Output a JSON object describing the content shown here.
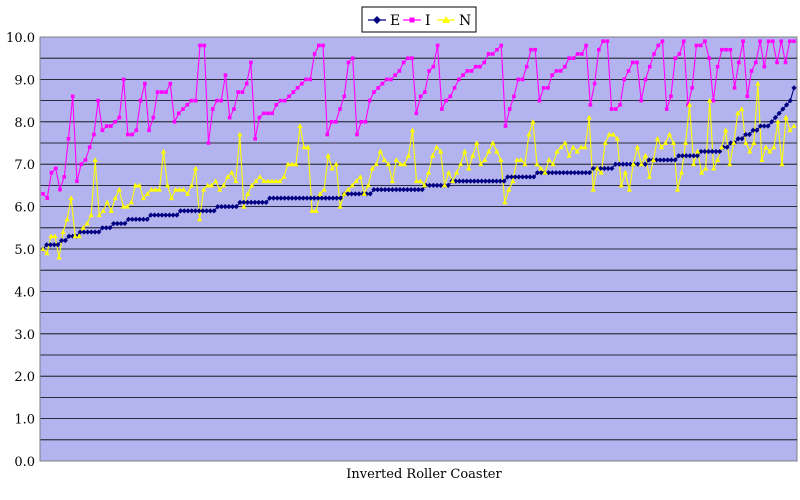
{
  "chart_data": {
    "type": "line",
    "title": "",
    "xlabel": "Inverted Roller Coaster",
    "ylabel": "",
    "ylim": [
      0,
      10
    ],
    "yticks": [
      "0.0",
      "1.0",
      "2.0",
      "3.0",
      "4.0",
      "5.0",
      "6.0",
      "7.0",
      "8.0",
      "9.0",
      "10.0"
    ],
    "grid": true,
    "legend_position": "top-center",
    "plot_background": "#b3b3f0",
    "series": [
      {
        "name": "E",
        "color": "#000080",
        "marker": "diamond",
        "values": [
          5.0,
          5.1,
          5.1,
          5.1,
          5.1,
          5.2,
          5.2,
          5.3,
          5.3,
          5.3,
          5.4,
          5.4,
          5.4,
          5.4,
          5.4,
          5.4,
          5.5,
          5.5,
          5.5,
          5.6,
          5.6,
          5.6,
          5.6,
          5.7,
          5.7,
          5.7,
          5.7,
          5.7,
          5.7,
          5.8,
          5.8,
          5.8,
          5.8,
          5.8,
          5.8,
          5.8,
          5.8,
          5.9,
          5.9,
          5.9,
          5.9,
          5.9,
          5.9,
          5.9,
          5.9,
          5.9,
          5.9,
          6.0,
          6.0,
          6.0,
          6.0,
          6.0,
          6.0,
          6.1,
          6.1,
          6.1,
          6.1,
          6.1,
          6.1,
          6.1,
          6.1,
          6.2,
          6.2,
          6.2,
          6.2,
          6.2,
          6.2,
          6.2,
          6.2,
          6.2,
          6.2,
          6.2,
          6.2,
          6.2,
          6.2,
          6.2,
          6.2,
          6.2,
          6.2,
          6.2,
          6.2,
          6.3,
          6.3,
          6.3,
          6.3,
          6.3,
          6.3,
          6.3,
          6.3,
          6.4,
          6.4,
          6.4,
          6.4,
          6.4,
          6.4,
          6.4,
          6.4,
          6.4,
          6.4,
          6.4,
          6.4,
          6.4,
          6.4,
          6.5,
          6.5,
          6.5,
          6.5,
          6.5,
          6.5,
          6.5,
          6.6,
          6.6,
          6.6,
          6.6,
          6.6,
          6.6,
          6.6,
          6.6,
          6.6,
          6.6,
          6.6,
          6.6,
          6.6,
          6.6,
          6.6,
          6.7,
          6.7,
          6.7,
          6.7,
          6.7,
          6.7,
          6.7,
          6.7,
          6.8,
          6.8,
          6.8,
          6.8,
          6.8,
          6.8,
          6.8,
          6.8,
          6.8,
          6.8,
          6.8,
          6.8,
          6.8,
          6.8,
          6.8,
          6.9,
          6.9,
          6.9,
          6.9,
          6.9,
          6.9,
          7.0,
          7.0,
          7.0,
          7.0,
          7.0,
          7.0,
          7.0,
          7.0,
          7.0,
          7.1,
          7.1,
          7.1,
          7.1,
          7.1,
          7.1,
          7.1,
          7.1,
          7.2,
          7.2,
          7.2,
          7.2,
          7.2,
          7.2,
          7.3,
          7.3,
          7.3,
          7.3,
          7.3,
          7.3,
          7.4,
          7.4,
          7.5,
          7.5,
          7.6,
          7.6,
          7.7,
          7.7,
          7.8,
          7.8,
          7.9,
          7.9,
          7.9,
          8.0,
          8.1,
          8.2,
          8.3,
          8.4,
          8.5,
          8.8
        ]
      },
      {
        "name": "I",
        "color": "#ff00ff",
        "marker": "square",
        "values": [
          6.3,
          6.2,
          6.8,
          6.9,
          6.4,
          6.7,
          7.6,
          8.6,
          6.6,
          7.0,
          7.1,
          7.4,
          7.7,
          8.5,
          7.8,
          7.9,
          7.9,
          8.0,
          8.1,
          9.0,
          7.7,
          7.7,
          7.8,
          8.5,
          8.9,
          7.8,
          8.1,
          8.7,
          8.7,
          8.7,
          8.9,
          8.0,
          8.2,
          8.3,
          8.4,
          8.5,
          8.5,
          9.8,
          9.8,
          7.5,
          8.3,
          8.5,
          8.5,
          9.1,
          8.1,
          8.3,
          8.7,
          8.7,
          8.9,
          9.4,
          7.6,
          8.1,
          8.2,
          8.2,
          8.2,
          8.4,
          8.5,
          8.5,
          8.6,
          8.7,
          8.8,
          8.9,
          9.0,
          9.0,
          9.6,
          9.8,
          9.8,
          7.7,
          8.0,
          8.0,
          8.3,
          8.6,
          9.4,
          9.5,
          7.7,
          8.0,
          8.0,
          8.5,
          8.7,
          8.8,
          8.9,
          9.0,
          9.0,
          9.1,
          9.2,
          9.4,
          9.5,
          9.5,
          8.2,
          8.6,
          8.7,
          9.2,
          9.3,
          9.8,
          8.3,
          8.5,
          8.6,
          8.8,
          9.0,
          9.1,
          9.2,
          9.2,
          9.3,
          9.3,
          9.4,
          9.6,
          9.6,
          9.7,
          9.8,
          7.9,
          8.3,
          8.6,
          9.0,
          9.0,
          9.3,
          9.7,
          9.7,
          8.5,
          8.8,
          8.8,
          9.1,
          9.2,
          9.2,
          9.3,
          9.5,
          9.5,
          9.6,
          9.6,
          9.8,
          8.4,
          8.9,
          9.7,
          9.9,
          9.9,
          8.3,
          8.3,
          8.4,
          9.0,
          9.2,
          9.4,
          9.4,
          8.5,
          9.0,
          9.3,
          9.6,
          9.8,
          9.9,
          8.3,
          8.6,
          9.5,
          9.6,
          9.9,
          8.4,
          8.8,
          9.8,
          9.8,
          9.9,
          9.5,
          8.5,
          9.3,
          9.7,
          9.7,
          9.7,
          8.8,
          9.4,
          9.9,
          8.6,
          9.2,
          9.4,
          9.9,
          9.3,
          9.9,
          9.9,
          9.4,
          9.9,
          9.4,
          9.9,
          9.9
        ]
      },
      {
        "name": "N",
        "color": "#ffff00",
        "marker": "triangle",
        "values": [
          5.0,
          4.9,
          5.3,
          5.3,
          4.8,
          5.4,
          5.7,
          6.2,
          5.3,
          5.3,
          5.5,
          5.6,
          5.8,
          7.1,
          5.8,
          5.9,
          6.1,
          5.9,
          6.2,
          6.4,
          6.0,
          6.0,
          6.1,
          6.5,
          6.5,
          6.2,
          6.3,
          6.4,
          6.4,
          6.4,
          7.3,
          6.5,
          6.2,
          6.4,
          6.4,
          6.4,
          6.3,
          6.5,
          6.9,
          5.7,
          6.4,
          6.5,
          6.5,
          6.6,
          6.4,
          6.5,
          6.7,
          6.8,
          6.6,
          7.7,
          6.0,
          6.3,
          6.5,
          6.6,
          6.7,
          6.6,
          6.6,
          6.6,
          6.6,
          6.6,
          6.7,
          7.0,
          7.0,
          7.0,
          7.9,
          7.4,
          7.4,
          5.9,
          5.9,
          6.3,
          6.4,
          7.2,
          6.9,
          7.0,
          6.0,
          6.3,
          6.4,
          6.5,
          6.6,
          6.7,
          6.3,
          6.5,
          6.9,
          7.0,
          7.3,
          7.1,
          7.0,
          6.6,
          7.1,
          7.0,
          7.0,
          7.2,
          7.8,
          6.6,
          6.6,
          6.5,
          6.8,
          7.2,
          7.4,
          7.3,
          6.5,
          6.8,
          6.6,
          6.8,
          7.0,
          7.3,
          6.9,
          7.2,
          7.5,
          7.0,
          7.1,
          7.3,
          7.5,
          7.3,
          7.1,
          6.1,
          6.4,
          6.6,
          7.1,
          7.1,
          7.0,
          7.7,
          8.0,
          7.0,
          6.9,
          6.8,
          7.1,
          7.0,
          7.3,
          7.4,
          7.5,
          7.2,
          7.4,
          7.3,
          7.4,
          7.4,
          8.1,
          6.4,
          6.9,
          6.8,
          7.5,
          7.7,
          7.7,
          7.6,
          6.5,
          6.8,
          6.4,
          7.0,
          7.4,
          7.0,
          7.2,
          6.7,
          7.1,
          7.6,
          7.4,
          7.5,
          7.7,
          7.5,
          6.4,
          6.8,
          7.5,
          8.4,
          7.0,
          7.3,
          6.8,
          6.9,
          8.5,
          6.9,
          7.1,
          7.4,
          7.8,
          7.0,
          7.5,
          8.2,
          8.3,
          7.5,
          7.3,
          7.5,
          8.9,
          7.1,
          7.4,
          7.3,
          7.4,
          8.0,
          7.0,
          8.1,
          7.8,
          7.9
        ]
      }
    ]
  }
}
